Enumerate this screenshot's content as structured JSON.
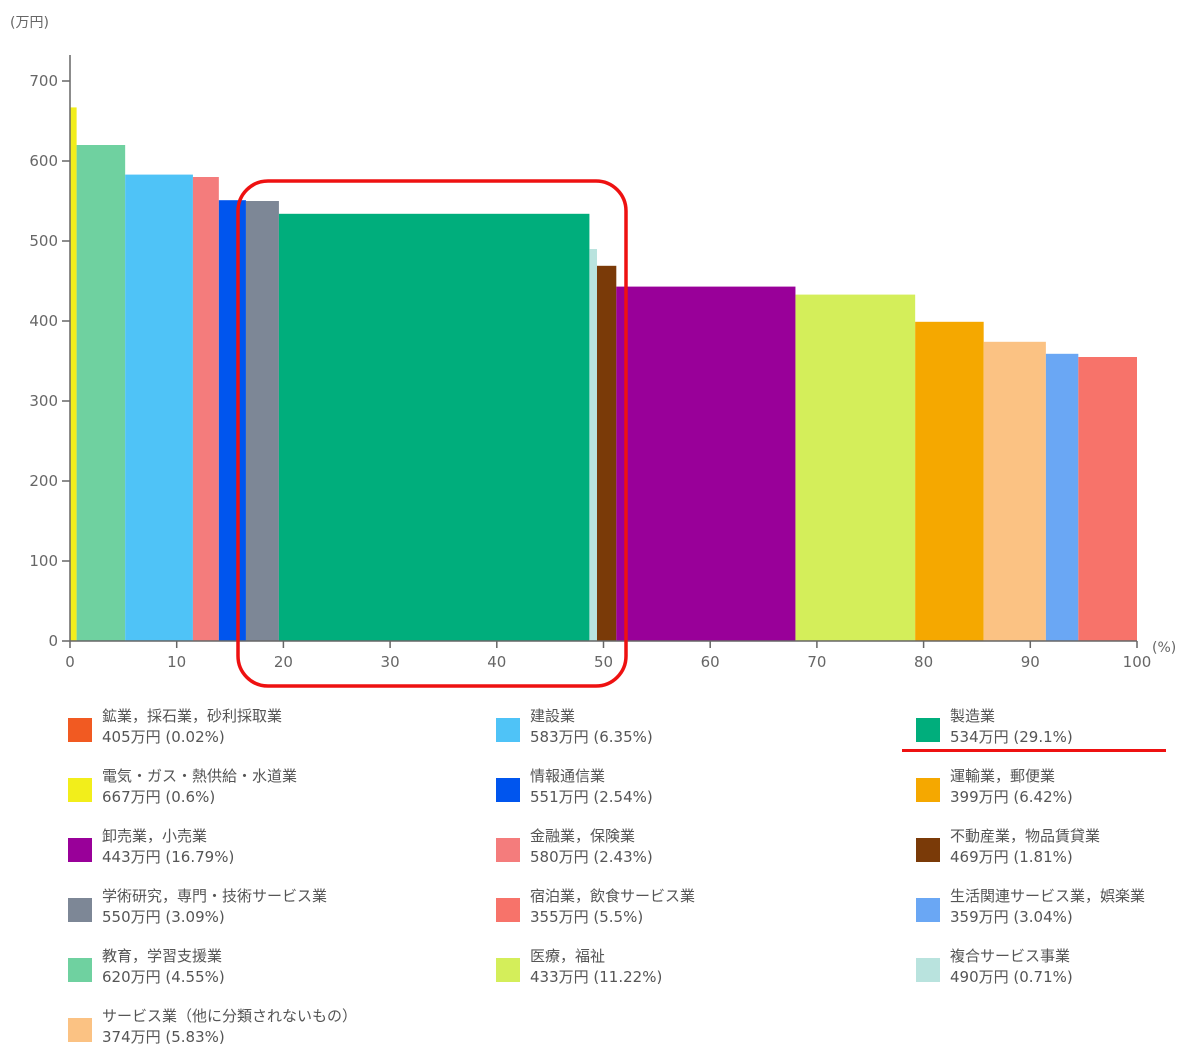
{
  "chart_data": {
    "type": "bar",
    "variant": "variable-width (marimekko-style)",
    "y_unit": "(万円)",
    "x_unit": "(%)",
    "xlim": [
      0,
      100
    ],
    "ylim": [
      0,
      700
    ],
    "x_ticks": [
      0,
      10,
      20,
      30,
      40,
      50,
      60,
      70,
      80,
      90,
      100
    ],
    "y_ticks": [
      0,
      100,
      200,
      300,
      400,
      500,
      600,
      700
    ],
    "bars": [
      {
        "name": "鉱業，採石業，砂利採取業",
        "value": 405,
        "share": 0.02,
        "color": "#f15a22",
        "value_label": "405万円",
        "share_label": "(0.02%)"
      },
      {
        "name": "電気・ガス・熱供給・水道業",
        "value": 667,
        "share": 0.6,
        "color": "#f2ee1b",
        "value_label": "667万円",
        "share_label": "(0.6%)"
      },
      {
        "name": "教育，学習支援業",
        "value": 620,
        "share": 4.55,
        "color": "#6fd1a0",
        "value_label": "620万円",
        "share_label": "(4.55%)"
      },
      {
        "name": "建設業",
        "value": 583,
        "share": 6.35,
        "color": "#4fc3f7",
        "value_label": "583万円",
        "share_label": "(6.35%)"
      },
      {
        "name": "金融業，保険業",
        "value": 580,
        "share": 2.43,
        "color": "#f47c7c",
        "value_label": "580万円",
        "share_label": "(2.43%)"
      },
      {
        "name": "情報通信業",
        "value": 551,
        "share": 2.54,
        "color": "#0055ee",
        "value_label": "551万円",
        "share_label": "(2.54%)"
      },
      {
        "name": "学術研究，専門・技術サービス業",
        "value": 550,
        "share": 3.09,
        "color": "#7d8796",
        "value_label": "550万円",
        "share_label": "(3.09%)"
      },
      {
        "name": "製造業",
        "value": 534,
        "share": 29.1,
        "color": "#00ae7c",
        "value_label": "534万円",
        "share_label": "(29.1%)"
      },
      {
        "name": "複合サービス事業",
        "value": 490,
        "share": 0.71,
        "color": "#b9e3de",
        "value_label": "490万円",
        "share_label": "(0.71%)"
      },
      {
        "name": "不動産業，物品賃貸業",
        "value": 469,
        "share": 1.81,
        "color": "#7a3a08",
        "value_label": "469万円",
        "share_label": "(1.81%)"
      },
      {
        "name": "卸売業，小売業",
        "value": 443,
        "share": 16.79,
        "color": "#990099",
        "value_label": "443万円",
        "share_label": "(16.79%)"
      },
      {
        "name": "医療，福祉",
        "value": 433,
        "share": 11.22,
        "color": "#d4ee5a",
        "value_label": "433万円",
        "share_label": "(11.22%)"
      },
      {
        "name": "運輸業，郵便業",
        "value": 399,
        "share": 6.42,
        "color": "#f5a800",
        "value_label": "399万円",
        "share_label": "(6.42%)"
      },
      {
        "name": "サービス業（他に分類されないもの）",
        "value": 374,
        "share": 5.83,
        "color": "#fbc283",
        "value_label": "374万円",
        "share_label": "(5.83%)"
      },
      {
        "name": "生活関連サービス業，娯楽業",
        "value": 359,
        "share": 3.04,
        "color": "#6aa7f4",
        "value_label": "359万円",
        "share_label": "(3.04%)"
      },
      {
        "name": "宿泊業，飲食サービス業",
        "value": 355,
        "share": 5.5,
        "color": "#f7736a",
        "value_label": "355万円",
        "share_label": "(5.5%)"
      }
    ],
    "legend_order": [
      [
        "鉱業，採石業，砂利採取業",
        "建設業",
        "製造業"
      ],
      [
        "電気・ガス・熱供給・水道業",
        "情報通信業",
        "運輸業，郵便業"
      ],
      [
        "卸売業，小売業",
        "金融業，保険業",
        "不動産業，物品賃貸業"
      ],
      [
        "学術研究，専門・技術サービス業",
        "宿泊業，飲食サービス業",
        "生活関連サービス業，娯楽業"
      ],
      [
        "教育，学習支援業",
        "医療，福祉",
        "複合サービス事業"
      ],
      [
        "サービス業（他に分類されないもの）"
      ]
    ],
    "legend_placement": "bottom",
    "grid": false,
    "highlight": {
      "target": "製造業",
      "style": "red rounded rectangle around bar and red underline in legend",
      "color": "#ee1111"
    }
  }
}
